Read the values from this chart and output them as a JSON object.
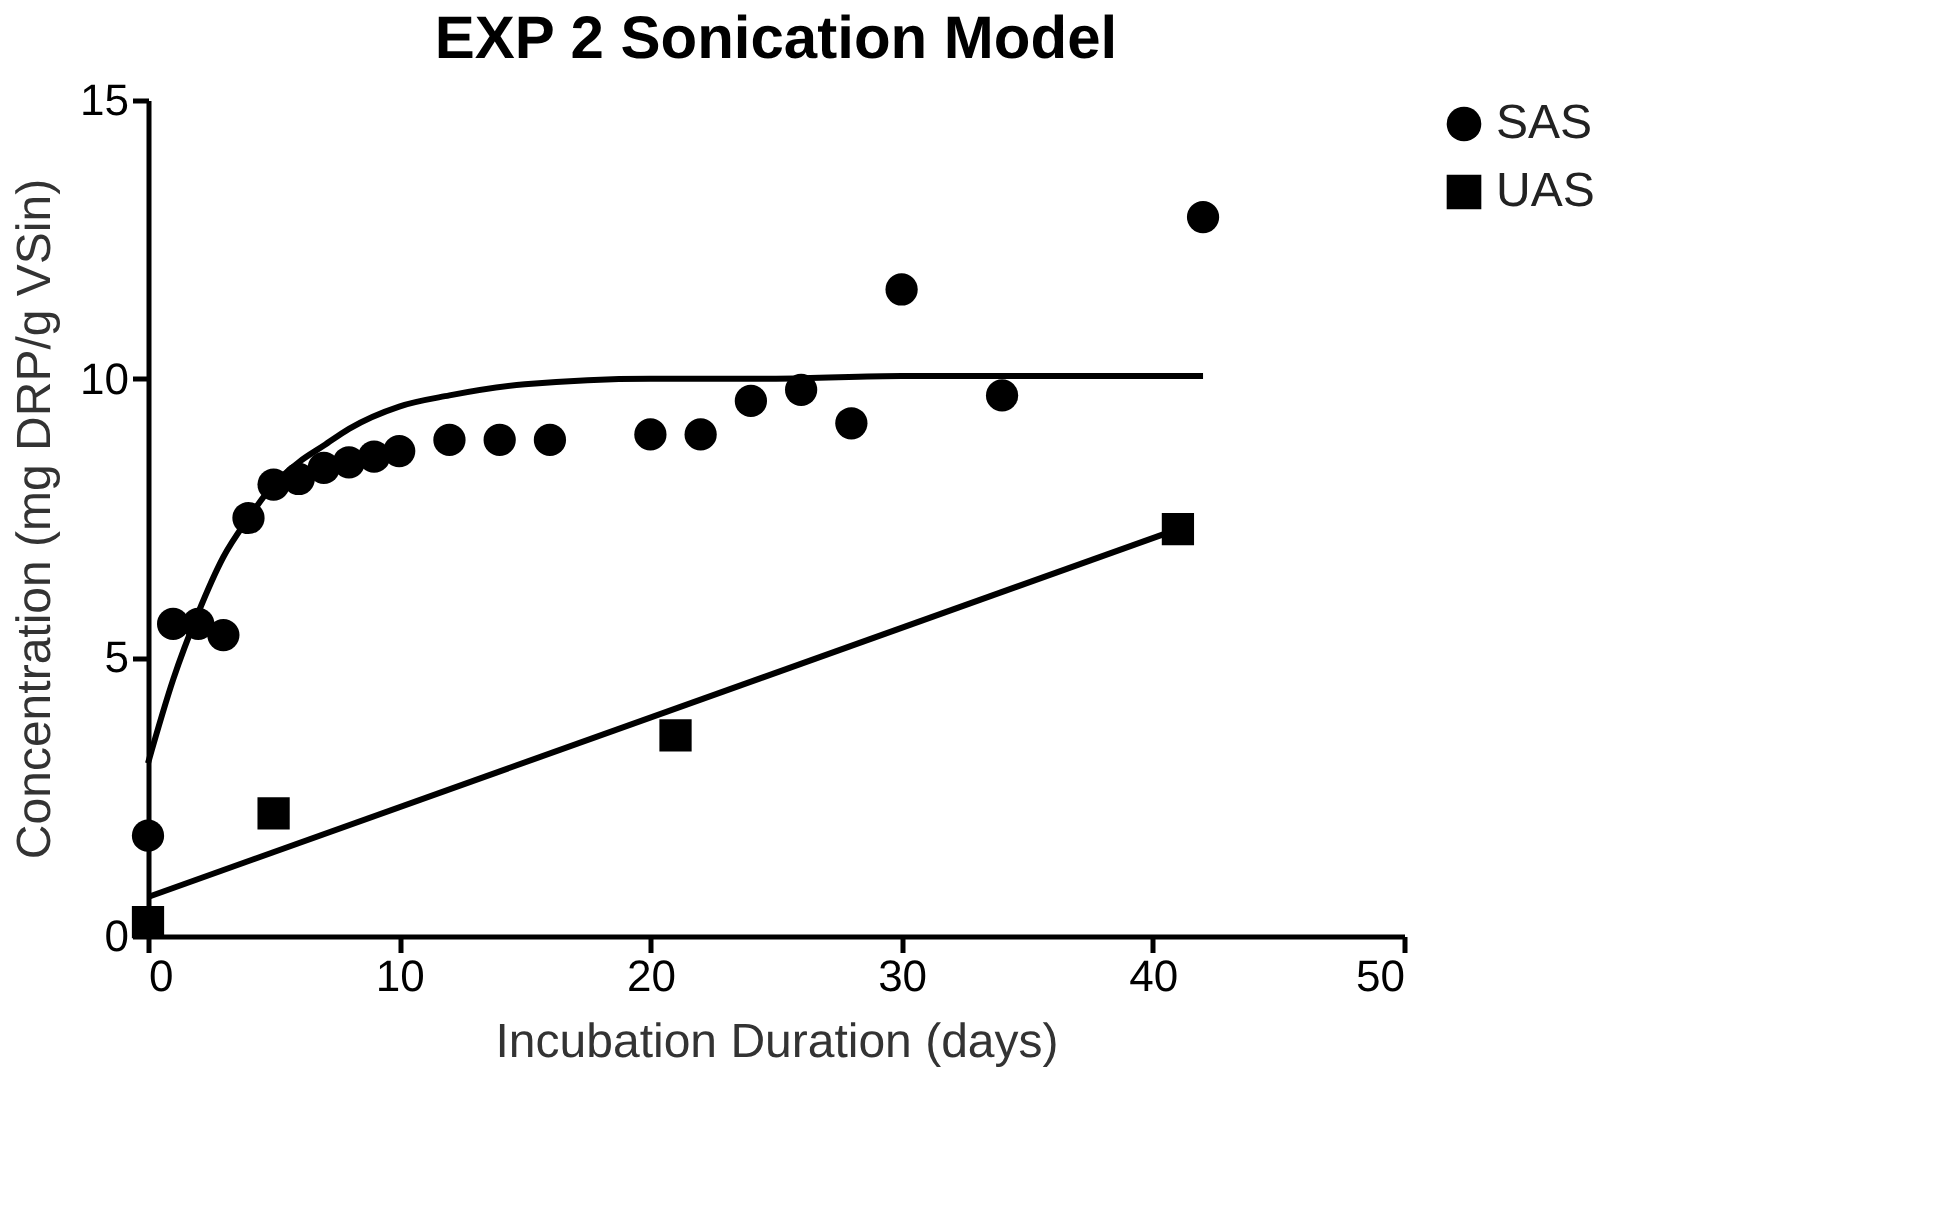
{
  "chart_data": {
    "type": "scatter",
    "title": "EXP 2 Sonication Model",
    "xlabel": "Incubation Duration (days)",
    "ylabel": "Concentration (mg DRP/g  VSin)",
    "xlim": [
      0,
      50
    ],
    "xticks": [
      0,
      10,
      20,
      30,
      40,
      50
    ],
    "ylim": [
      0,
      15
    ],
    "yticks": [
      0,
      5,
      10,
      15
    ],
    "grid": false,
    "legend": "top right",
    "series": [
      {
        "name": "SAS",
        "marker": "circle",
        "color": "#000000",
        "x": [
          0,
          1,
          2,
          3,
          4,
          5,
          6,
          7,
          8,
          9,
          10,
          12,
          14,
          16,
          20,
          22,
          24,
          26,
          28,
          30,
          34,
          42
        ],
        "values": [
          1.8,
          5.6,
          5.6,
          5.4,
          7.5,
          8.1,
          8.2,
          8.4,
          8.5,
          8.6,
          8.7,
          8.9,
          8.9,
          8.9,
          9.0,
          9.0,
          9.6,
          9.8,
          9.2,
          11.6,
          9.7,
          12.9
        ]
      },
      {
        "name": "UAS",
        "marker": "square",
        "color": "#000000",
        "x": [
          0,
          5,
          21,
          41
        ],
        "values": [
          0.25,
          2.2,
          3.6,
          7.3
        ]
      },
      {
        "type": "line",
        "color": "#000000",
        "line_style": "solid",
        "x": [
          0,
          1,
          2,
          3,
          4,
          5,
          6,
          7,
          8,
          10,
          12,
          15,
          20,
          25,
          30,
          42
        ],
        "values": [
          3.1,
          4.6,
          5.8,
          6.8,
          7.5,
          8.1,
          8.5,
          8.8,
          9.1,
          9.5,
          9.7,
          9.9,
          10.0,
          10.0,
          10.05,
          10.05
        ]
      },
      {
        "type": "line",
        "color": "#000000",
        "line_style": "solid",
        "x": [
          0,
          41
        ],
        "values": [
          0.7,
          7.3
        ]
      }
    ]
  }
}
